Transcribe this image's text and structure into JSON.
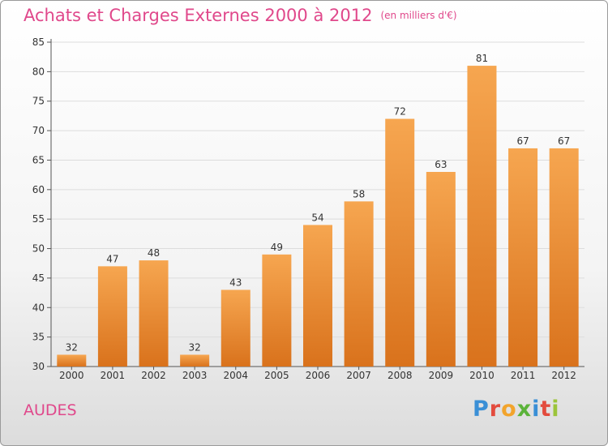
{
  "title": "Achats et Charges Externes 2000 à 2012",
  "unit_label": "(en milliers d'€)",
  "commune": "AUDES",
  "logo": {
    "letters": [
      "P",
      "r",
      "o",
      "x",
      "i",
      "t",
      "i"
    ]
  },
  "colors": {
    "bar_top": "#f6a650",
    "bar_bottom": "#d9721c",
    "title": "#e0488b",
    "grid": "#dddddd"
  },
  "chart_data": {
    "type": "bar",
    "categories": [
      "2000",
      "2001",
      "2002",
      "2003",
      "2004",
      "2005",
      "2006",
      "2007",
      "2008",
      "2009",
      "2010",
      "2011",
      "2012"
    ],
    "values": [
      32,
      47,
      48,
      32,
      43,
      49,
      54,
      58,
      72,
      63,
      81,
      67,
      67
    ],
    "ylim": [
      30,
      85
    ],
    "yticks": [
      30,
      35,
      40,
      45,
      50,
      55,
      60,
      65,
      70,
      75,
      80,
      85
    ],
    "grid": true
  }
}
